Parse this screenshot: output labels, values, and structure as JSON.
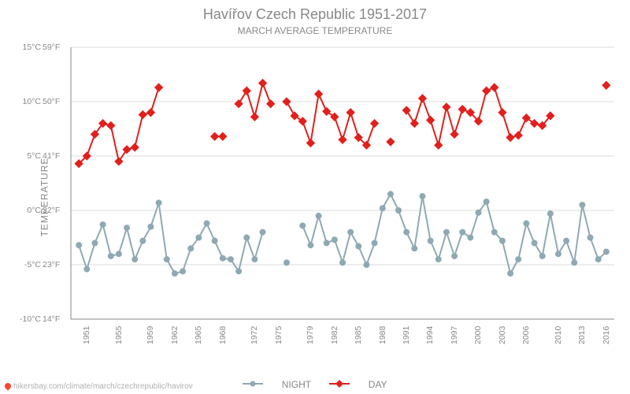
{
  "title": "Havířov Czech Republic 1951-2017",
  "subtitle": "MARCH AVERAGE TEMPERATURE",
  "footer_url": "hikersbay.com/climate/march/czechrepublic/havirov",
  "chart": {
    "type": "line",
    "ylabel": "TEMPERATURE",
    "xlim": [
      1950,
      2018
    ],
    "ylim_c": [
      -10,
      15
    ],
    "yticks_c": [
      -10,
      -5,
      0,
      5,
      10,
      15
    ],
    "yticks_f": [
      14,
      23,
      32,
      41,
      50,
      59
    ],
    "xticks": [
      1951,
      1955,
      1959,
      1962,
      1965,
      1968,
      1972,
      1975,
      1979,
      1982,
      1985,
      1988,
      1991,
      1994,
      1997,
      2000,
      2003,
      2006,
      2010,
      2013,
      2016
    ],
    "grid_color": "#dddddd",
    "axis_color": "#888888",
    "background_color": "#ffffff",
    "title_fontsize": 18,
    "label_fontsize": 12,
    "tick_fontsize": 10.5,
    "marker_size": 3.5,
    "line_width": 2,
    "series": [
      {
        "label": "NIGHT",
        "color": "#8fa9b3",
        "marker": "circle",
        "data": [
          [
            1951,
            -3.2
          ],
          [
            1952,
            -5.4
          ],
          [
            1953,
            -3.0
          ],
          [
            1954,
            -1.3
          ],
          [
            1955,
            -4.2
          ],
          [
            1956,
            -4.0
          ],
          [
            1957,
            -1.6
          ],
          [
            1958,
            -4.5
          ],
          [
            1959,
            -2.8
          ],
          [
            1960,
            -1.5
          ],
          [
            1961,
            0.7
          ],
          [
            1962,
            -4.5
          ],
          [
            1963,
            -5.8
          ],
          [
            1964,
            -5.6
          ],
          [
            1965,
            -3.5
          ],
          [
            1966,
            -2.5
          ],
          [
            1967,
            -1.2
          ],
          [
            1968,
            -2.8
          ],
          [
            1969,
            -4.4
          ],
          [
            1970,
            -4.5
          ],
          [
            1971,
            -5.6
          ],
          [
            1972,
            -2.5
          ],
          [
            1973,
            -4.5
          ],
          [
            1974,
            -2.0
          ],
          [
            1977,
            -4.8
          ],
          [
            1979,
            -1.4
          ],
          [
            1980,
            -3.2
          ],
          [
            1981,
            -0.5
          ],
          [
            1982,
            -3.0
          ],
          [
            1983,
            -2.7
          ],
          [
            1984,
            -4.8
          ],
          [
            1985,
            -2.0
          ],
          [
            1986,
            -3.3
          ],
          [
            1987,
            -5.0
          ],
          [
            1988,
            -3.0
          ],
          [
            1989,
            0.2
          ],
          [
            1990,
            1.5
          ],
          [
            1991,
            0.0
          ],
          [
            1992,
            -2.0
          ],
          [
            1993,
            -3.5
          ],
          [
            1994,
            1.3
          ],
          [
            1995,
            -2.8
          ],
          [
            1996,
            -4.5
          ],
          [
            1997,
            -2.0
          ],
          [
            1998,
            -4.2
          ],
          [
            1999,
            -2.0
          ],
          [
            2000,
            -2.5
          ],
          [
            2001,
            -0.2
          ],
          [
            2002,
            0.8
          ],
          [
            2003,
            -2.0
          ],
          [
            2004,
            -2.8
          ],
          [
            2005,
            -5.8
          ],
          [
            2006,
            -4.5
          ],
          [
            2007,
            -1.2
          ],
          [
            2008,
            -3.0
          ],
          [
            2009,
            -4.2
          ],
          [
            2010,
            -0.3
          ],
          [
            2011,
            -4.0
          ],
          [
            2012,
            -2.8
          ],
          [
            2013,
            -4.8
          ],
          [
            2014,
            0.5
          ],
          [
            2015,
            -2.5
          ],
          [
            2016,
            -4.5
          ],
          [
            2017,
            -3.8
          ]
        ]
      },
      {
        "label": "DAY",
        "color": "#e1201d",
        "marker": "diamond",
        "data": [
          [
            1951,
            4.3
          ],
          [
            1952,
            5.0
          ],
          [
            1953,
            7.0
          ],
          [
            1954,
            8.0
          ],
          [
            1955,
            7.8
          ],
          [
            1956,
            4.5
          ],
          [
            1957,
            5.6
          ],
          [
            1958,
            5.8
          ],
          [
            1959,
            8.8
          ],
          [
            1960,
            9.0
          ],
          [
            1961,
            11.3
          ],
          [
            1968,
            6.8
          ],
          [
            1969,
            6.8
          ],
          [
            1971,
            9.8
          ],
          [
            1972,
            11.0
          ],
          [
            1973,
            8.6
          ],
          [
            1974,
            11.7
          ],
          [
            1975,
            9.8
          ],
          [
            1977,
            10.0
          ],
          [
            1978,
            8.7
          ],
          [
            1979,
            8.2
          ],
          [
            1980,
            6.2
          ],
          [
            1981,
            10.7
          ],
          [
            1982,
            9.1
          ],
          [
            1983,
            8.6
          ],
          [
            1984,
            6.5
          ],
          [
            1985,
            9.0
          ],
          [
            1986,
            6.7
          ],
          [
            1987,
            6.0
          ],
          [
            1988,
            8.0
          ],
          [
            1990,
            6.3
          ],
          [
            1992,
            9.2
          ],
          [
            1993,
            8.0
          ],
          [
            1994,
            10.3
          ],
          [
            1995,
            8.3
          ],
          [
            1996,
            6.0
          ],
          [
            1997,
            9.5
          ],
          [
            1998,
            7.0
          ],
          [
            1999,
            9.3
          ],
          [
            2000,
            9.0
          ],
          [
            2001,
            8.2
          ],
          [
            2002,
            11.0
          ],
          [
            2003,
            11.3
          ],
          [
            2004,
            9.0
          ],
          [
            2005,
            6.7
          ],
          [
            2006,
            6.9
          ],
          [
            2007,
            8.5
          ],
          [
            2008,
            8.0
          ],
          [
            2009,
            7.8
          ],
          [
            2010,
            8.7
          ],
          [
            2017,
            11.5
          ]
        ]
      }
    ]
  }
}
